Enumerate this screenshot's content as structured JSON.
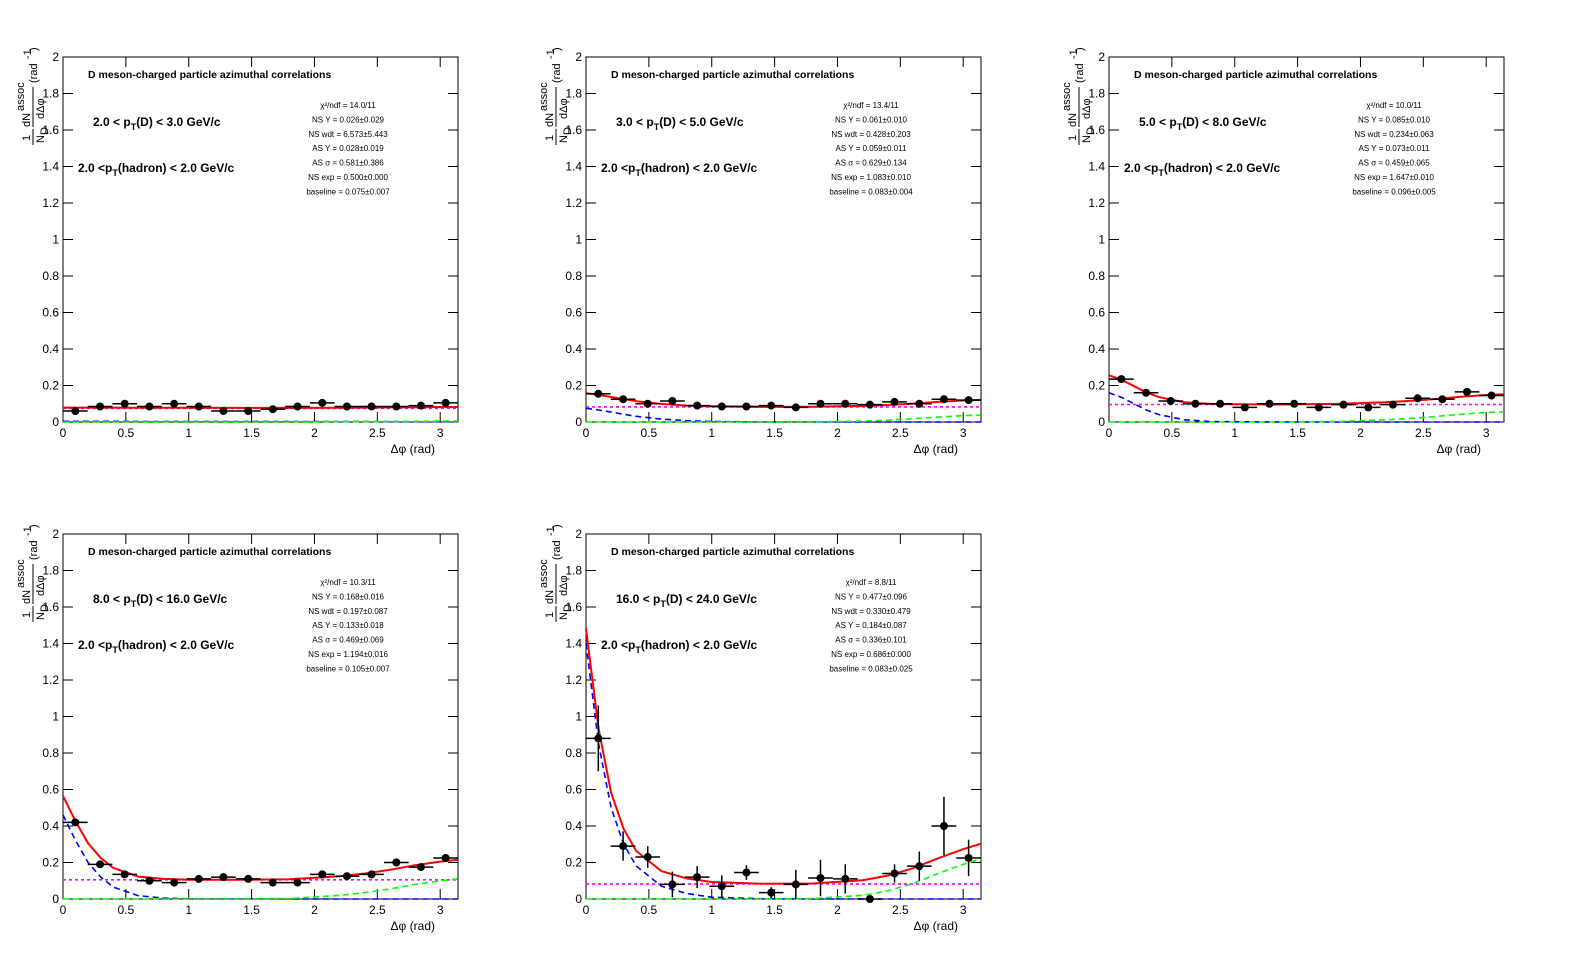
{
  "chart_data": [
    {
      "type": "errorbar",
      "title": "D meson-charged particle azimuthal correlations",
      "pt_label": {
        "pre": "2.0 < p",
        "sub": "T",
        "post": "(D) < 3.0 GeV/c"
      },
      "hadron_label": {
        "pre": "2.0 <p",
        "sub": "T",
        "post": "(hadron) < 2.0 GeV/c"
      },
      "stats": [
        "χ²/ndf = 14.0/11",
        "NS Y = 0.026±0.029",
        "NS wdt = 6.573±5.443",
        "AS Y = 0.028±0.019",
        "AS σ = 0.581±0.386",
        "NS exp = 0.500±0.000",
        "baseline = 0.075±0.007"
      ],
      "ylabel": [
        "1",
        "N",
        "D",
        "dN",
        "assoc",
        "dΔφ",
        "(rad",
        "-1",
        ")"
      ],
      "xlabel": "Δφ (rad)",
      "xlim": [
        0,
        3.1416
      ],
      "xticks": [
        0,
        0.5,
        1,
        1.5,
        2,
        2.5,
        3
      ],
      "ylim": [
        0,
        2
      ],
      "yticks": [
        0,
        0.2,
        0.4,
        0.6,
        0.8,
        1,
        1.2,
        1.4,
        1.6,
        1.8,
        2
      ],
      "points": {
        "color": "#000000",
        "xerr": 0.0982,
        "x": [
          0.098,
          0.295,
          0.491,
          0.687,
          0.884,
          1.08,
          1.276,
          1.473,
          1.669,
          1.865,
          2.062,
          2.258,
          2.454,
          2.651,
          2.847,
          3.043
        ],
        "values": [
          0.06,
          0.085,
          0.1,
          0.085,
          0.1,
          0.085,
          0.06,
          0.06,
          0.07,
          0.085,
          0.105,
          0.085,
          0.085,
          0.085,
          0.09,
          0.105
        ],
        "errors": [
          0.01,
          0.01,
          0.01,
          0.01,
          0.01,
          0.01,
          0.01,
          0.01,
          0.01,
          0.01,
          0.01,
          0.01,
          0.01,
          0.01,
          0.01,
          0.01
        ]
      },
      "curve_x": [
        0,
        0.1,
        0.2,
        0.3,
        0.4,
        0.6,
        0.8,
        1.0,
        1.4,
        1.8,
        2.2,
        2.4,
        2.6,
        2.8,
        3.0,
        3.1416
      ],
      "curves": [
        {
          "color": "#ff00ff",
          "style": "dotted",
          "values": [
            0.075,
            0.075,
            0.075,
            0.075,
            0.075,
            0.075,
            0.075,
            0.075,
            0.075,
            0.075,
            0.075,
            0.075,
            0.075,
            0.075,
            0.075,
            0.075
          ]
        },
        {
          "color": "#0000ff",
          "style": "dashed",
          "values": [
            0.004,
            0.004,
            0.004,
            0.004,
            0.004,
            0.003,
            0.003,
            0.003,
            0.002,
            0.002,
            0.002,
            0.002,
            0.002,
            0.002,
            0.002,
            0.002
          ]
        },
        {
          "color": "#00ff00",
          "style": "dashed",
          "values": [
            0,
            0,
            0,
            0,
            0,
            0,
            0,
            0,
            0,
            0,
            0.001,
            0.002,
            0.003,
            0.004,
            0.005,
            0.005
          ]
        },
        {
          "color": "#ff0000",
          "style": "solid",
          "values": [
            0.079,
            0.079,
            0.079,
            0.079,
            0.079,
            0.078,
            0.078,
            0.078,
            0.077,
            0.077,
            0.078,
            0.079,
            0.08,
            0.081,
            0.082,
            0.082
          ]
        }
      ]
    },
    {
      "type": "errorbar",
      "title": "D meson-charged particle azimuthal correlations",
      "pt_label": {
        "pre": "3.0 < p",
        "sub": "T",
        "post": "(D) < 5.0 GeV/c"
      },
      "hadron_label": {
        "pre": "2.0 <p",
        "sub": "T",
        "post": "(hadron) < 2.0 GeV/c"
      },
      "stats": [
        "χ²/ndf = 13.4/11",
        "NS Y = 0.061±0.010",
        "NS wdt = 0.428±0.203",
        "AS Y = 0.059±0.011",
        "AS σ = 0.629±0.134",
        "NS exp = 1.083±0.010",
        "baseline = 0.083±0.004"
      ],
      "ylabel": [
        "1",
        "N",
        "D",
        "dN",
        "assoc",
        "dΔφ",
        "(rad",
        "-1",
        ")"
      ],
      "xlabel": "Δφ (rad)",
      "xlim": [
        0,
        3.1416
      ],
      "xticks": [
        0,
        0.5,
        1,
        1.5,
        2,
        2.5,
        3
      ],
      "ylim": [
        0,
        2
      ],
      "yticks": [
        0,
        0.2,
        0.4,
        0.6,
        0.8,
        1,
        1.2,
        1.4,
        1.6,
        1.8,
        2
      ],
      "points": {
        "color": "#000000",
        "xerr": 0.0982,
        "x": [
          0.098,
          0.295,
          0.491,
          0.687,
          0.884,
          1.08,
          1.276,
          1.473,
          1.669,
          1.865,
          2.062,
          2.258,
          2.454,
          2.651,
          2.847,
          3.043
        ],
        "values": [
          0.155,
          0.125,
          0.1,
          0.115,
          0.09,
          0.085,
          0.085,
          0.09,
          0.08,
          0.1,
          0.1,
          0.095,
          0.11,
          0.1,
          0.125,
          0.12
        ],
        "errors": [
          0.01,
          0.01,
          0.01,
          0.01,
          0.01,
          0.01,
          0.01,
          0.01,
          0.01,
          0.01,
          0.01,
          0.01,
          0.01,
          0.01,
          0.01,
          0.01
        ]
      },
      "curve_x": [
        0,
        0.1,
        0.2,
        0.3,
        0.4,
        0.6,
        0.8,
        1.0,
        1.4,
        1.8,
        2.2,
        2.4,
        2.6,
        2.8,
        3.0,
        3.1416
      ],
      "curves": [
        {
          "color": "#ff00ff",
          "style": "dotted",
          "values": [
            0.083,
            0.083,
            0.083,
            0.083,
            0.083,
            0.083,
            0.083,
            0.083,
            0.083,
            0.083,
            0.083,
            0.083,
            0.083,
            0.083,
            0.083,
            0.083
          ]
        },
        {
          "color": "#0000ff",
          "style": "dashed",
          "values": [
            0.075,
            0.066,
            0.054,
            0.042,
            0.031,
            0.016,
            0.007,
            0.003,
            0,
            0,
            0,
            0,
            0,
            0,
            0,
            0
          ]
        },
        {
          "color": "#00ff00",
          "style": "dashed",
          "values": [
            0,
            0,
            0,
            0,
            0,
            0,
            0,
            0,
            0,
            0.001,
            0.005,
            0.01,
            0.018,
            0.027,
            0.035,
            0.038
          ]
        },
        {
          "color": "#ff0000",
          "style": "solid",
          "values": [
            0.158,
            0.149,
            0.137,
            0.125,
            0.114,
            0.099,
            0.09,
            0.086,
            0.083,
            0.084,
            0.088,
            0.093,
            0.101,
            0.11,
            0.118,
            0.121
          ]
        }
      ]
    },
    {
      "type": "errorbar",
      "title": "D meson-charged particle azimuthal correlations",
      "pt_label": {
        "pre": "5.0 < p",
        "sub": "T",
        "post": "(D) < 8.0 GeV/c"
      },
      "hadron_label": {
        "pre": "2.0 <p",
        "sub": "T",
        "post": "(hadron) < 2.0 GeV/c"
      },
      "stats": [
        "χ²/ndf = 10.0/11",
        "NS Y = 0.085±0.010",
        "NS wdt = 0.234±0.063",
        "AS Y = 0.073±0.011",
        "AS σ = 0.459±0.065",
        "NS exp = 1.647±0.010",
        "baseline = 0.096±0.005"
      ],
      "ylabel": [
        "1",
        "N",
        "D",
        "dN",
        "assoc",
        "dΔφ",
        "(rad",
        "-1",
        ")"
      ],
      "xlabel": "Δφ (rad)",
      "xlim": [
        0,
        3.1416
      ],
      "xticks": [
        0,
        0.5,
        1,
        1.5,
        2,
        2.5,
        3
      ],
      "ylim": [
        0,
        2
      ],
      "yticks": [
        0,
        0.2,
        0.4,
        0.6,
        0.8,
        1,
        1.2,
        1.4,
        1.6,
        1.8,
        2
      ],
      "points": {
        "color": "#000000",
        "xerr": 0.0982,
        "x": [
          0.098,
          0.295,
          0.491,
          0.687,
          0.884,
          1.08,
          1.276,
          1.473,
          1.669,
          1.865,
          2.062,
          2.258,
          2.454,
          2.651,
          2.847,
          3.043
        ],
        "values": [
          0.235,
          0.16,
          0.115,
          0.1,
          0.1,
          0.08,
          0.1,
          0.1,
          0.08,
          0.095,
          0.08,
          0.095,
          0.13,
          0.125,
          0.165,
          0.145
        ],
        "errors": [
          0.01,
          0.01,
          0.01,
          0.01,
          0.01,
          0.01,
          0.01,
          0.01,
          0.01,
          0.01,
          0.01,
          0.01,
          0.01,
          0.01,
          0.01,
          0.01
        ]
      },
      "curve_x": [
        0,
        0.1,
        0.2,
        0.3,
        0.4,
        0.6,
        0.8,
        1.0,
        1.4,
        1.8,
        2.2,
        2.4,
        2.6,
        2.8,
        3.0,
        3.1416
      ],
      "curves": [
        {
          "color": "#ff00ff",
          "style": "dotted",
          "values": [
            0.096,
            0.096,
            0.096,
            0.096,
            0.096,
            0.096,
            0.096,
            0.096,
            0.096,
            0.096,
            0.096,
            0.096,
            0.096,
            0.096,
            0.096,
            0.096
          ]
        },
        {
          "color": "#0000ff",
          "style": "dashed",
          "values": [
            0.16,
            0.135,
            0.1,
            0.065,
            0.04,
            0.012,
            0.003,
            0.001,
            0,
            0,
            0,
            0,
            0,
            0,
            0,
            0
          ]
        },
        {
          "color": "#00ff00",
          "style": "dashed",
          "values": [
            0,
            0,
            0,
            0,
            0,
            0,
            0,
            0,
            0,
            0.003,
            0.012,
            0.02,
            0.03,
            0.042,
            0.052,
            0.056
          ]
        },
        {
          "color": "#ff0000",
          "style": "solid",
          "values": [
            0.256,
            0.231,
            0.196,
            0.161,
            0.136,
            0.108,
            0.099,
            0.097,
            0.096,
            0.099,
            0.108,
            0.116,
            0.126,
            0.138,
            0.148,
            0.152
          ]
        }
      ]
    },
    {
      "type": "errorbar",
      "title": "D meson-charged particle azimuthal correlations",
      "pt_label": {
        "pre": "8.0 < p",
        "sub": "T",
        "post": "(D) < 16.0 GeV/c"
      },
      "hadron_label": {
        "pre": "2.0 <p",
        "sub": "T",
        "post": "(hadron) < 2.0 GeV/c"
      },
      "stats": [
        "χ²/ndf = 10.3/11",
        "NS Y = 0.168±0.016",
        "NS wdt = 0.197±0.087",
        "AS Y = 0.133±0.018",
        "AS σ = 0.469±0.069",
        "NS exp = 1.194±0.016",
        "baseline = 0.105±0.007"
      ],
      "ylabel": [
        "1",
        "N",
        "D",
        "dN",
        "assoc",
        "dΔφ",
        "(rad",
        "-1",
        ")"
      ],
      "xlabel": "Δφ (rad)",
      "xlim": [
        0,
        3.1416
      ],
      "xticks": [
        0,
        0.5,
        1,
        1.5,
        2,
        2.5,
        3
      ],
      "ylim": [
        0,
        2
      ],
      "yticks": [
        0,
        0.2,
        0.4,
        0.6,
        0.8,
        1,
        1.2,
        1.4,
        1.6,
        1.8,
        2
      ],
      "points": {
        "color": "#000000",
        "xerr": 0.0982,
        "x": [
          0.098,
          0.295,
          0.491,
          0.687,
          0.884,
          1.08,
          1.276,
          1.473,
          1.669,
          1.865,
          2.062,
          2.258,
          2.454,
          2.651,
          2.847,
          3.043
        ],
        "values": [
          0.42,
          0.19,
          0.135,
          0.1,
          0.09,
          0.11,
          0.12,
          0.11,
          0.09,
          0.09,
          0.135,
          0.125,
          0.135,
          0.2,
          0.175,
          0.225
        ],
        "errors": [
          0.015,
          0.012,
          0.012,
          0.012,
          0.012,
          0.012,
          0.012,
          0.012,
          0.012,
          0.012,
          0.012,
          0.012,
          0.012,
          0.015,
          0.015,
          0.015
        ]
      },
      "curve_x": [
        0,
        0.1,
        0.2,
        0.3,
        0.4,
        0.6,
        0.8,
        1.0,
        1.4,
        1.8,
        2.2,
        2.4,
        2.6,
        2.8,
        3.0,
        3.1416
      ],
      "curves": [
        {
          "color": "#ff00ff",
          "style": "dotted",
          "values": [
            0.105,
            0.105,
            0.105,
            0.105,
            0.105,
            0.105,
            0.105,
            0.105,
            0.105,
            0.105,
            0.105,
            0.105,
            0.105,
            0.105,
            0.105,
            0.105
          ]
        },
        {
          "color": "#0000ff",
          "style": "dashed",
          "values": [
            0.46,
            0.32,
            0.2,
            0.12,
            0.065,
            0.018,
            0.005,
            0.001,
            0,
            0,
            0,
            0,
            0,
            0,
            0,
            0
          ]
        },
        {
          "color": "#00ff00",
          "style": "dashed",
          "values": [
            0,
            0,
            0,
            0,
            0,
            0,
            0,
            0,
            0,
            0.003,
            0.02,
            0.035,
            0.055,
            0.08,
            0.1,
            0.11
          ]
        },
        {
          "color": "#ff0000",
          "style": "solid",
          "values": [
            0.565,
            0.425,
            0.305,
            0.225,
            0.17,
            0.123,
            0.11,
            0.106,
            0.105,
            0.108,
            0.125,
            0.14,
            0.16,
            0.185,
            0.205,
            0.215
          ]
        }
      ]
    },
    {
      "type": "errorbar",
      "title": "D meson-charged particle azimuthal correlations",
      "pt_label": {
        "pre": "16.0 < p",
        "sub": "T",
        "post": "(D) < 24.0 GeV/c"
      },
      "hadron_label": {
        "pre": "2.0 <p",
        "sub": "T",
        "post": "(hadron) < 2.0 GeV/c"
      },
      "stats": [
        "χ²/ndf = 8.8/11",
        "NS Y = 0.477±0.096",
        "NS wdt = 0.330±0.479",
        "AS Y = 0.184±0.087",
        "AS σ = 0.336±0.101",
        "NS exp = 0.686±0.000",
        "baseline = 0.083±0.025"
      ],
      "ylabel": [
        "1",
        "N",
        "D",
        "dN",
        "assoc",
        "dΔφ",
        "(rad",
        "-1",
        ")"
      ],
      "xlabel": "Δφ (rad)",
      "xlim": [
        0,
        3.1416
      ],
      "xticks": [
        0,
        0.5,
        1,
        1.5,
        2,
        2.5,
        3
      ],
      "ylim": [
        0,
        2
      ],
      "yticks": [
        0,
        0.2,
        0.4,
        0.6,
        0.8,
        1,
        1.2,
        1.4,
        1.6,
        1.8,
        2
      ],
      "points": {
        "color": "#000000",
        "xerr": 0.0982,
        "x": [
          0.098,
          0.295,
          0.491,
          0.687,
          0.884,
          1.08,
          1.276,
          1.473,
          1.669,
          1.865,
          2.062,
          2.258,
          2.454,
          2.651,
          2.847,
          3.043
        ],
        "values": [
          0.88,
          0.29,
          0.23,
          0.08,
          0.12,
          0.07,
          0.145,
          0.035,
          0.08,
          0.115,
          0.11,
          0,
          0.14,
          0.18,
          0.4,
          0.225
        ],
        "errors": [
          0.18,
          0.08,
          0.06,
          0.07,
          0.06,
          0.06,
          0.04,
          0.03,
          0.08,
          0.1,
          0.08,
          0.02,
          0.05,
          0.08,
          0.16,
          0.1
        ]
      },
      "curve_x": [
        0,
        0.1,
        0.2,
        0.3,
        0.4,
        0.6,
        0.8,
        1.0,
        1.4,
        1.8,
        2.2,
        2.4,
        2.6,
        2.8,
        3.0,
        3.1416
      ],
      "curves": [
        {
          "color": "#ff00ff",
          "style": "dotted",
          "values": [
            0.083,
            0.083,
            0.083,
            0.083,
            0.083,
            0.083,
            0.083,
            0.083,
            0.083,
            0.083,
            0.083,
            0.083,
            0.083,
            0.083,
            0.083,
            0.083
          ]
        },
        {
          "color": "#0000ff",
          "style": "dashed",
          "values": [
            1.4,
            0.85,
            0.5,
            0.3,
            0.18,
            0.07,
            0.03,
            0.01,
            0.001,
            0,
            0,
            0,
            0,
            0,
            0,
            0
          ]
        },
        {
          "color": "#00ff00",
          "style": "dashed",
          "values": [
            0,
            0,
            0,
            0,
            0,
            0,
            0,
            0,
            0,
            0.002,
            0.02,
            0.045,
            0.085,
            0.14,
            0.19,
            0.22
          ]
        },
        {
          "color": "#ff0000",
          "style": "solid",
          "values": [
            1.483,
            0.933,
            0.583,
            0.383,
            0.263,
            0.153,
            0.113,
            0.093,
            0.084,
            0.085,
            0.103,
            0.128,
            0.168,
            0.223,
            0.273,
            0.303
          ]
        }
      ]
    }
  ]
}
